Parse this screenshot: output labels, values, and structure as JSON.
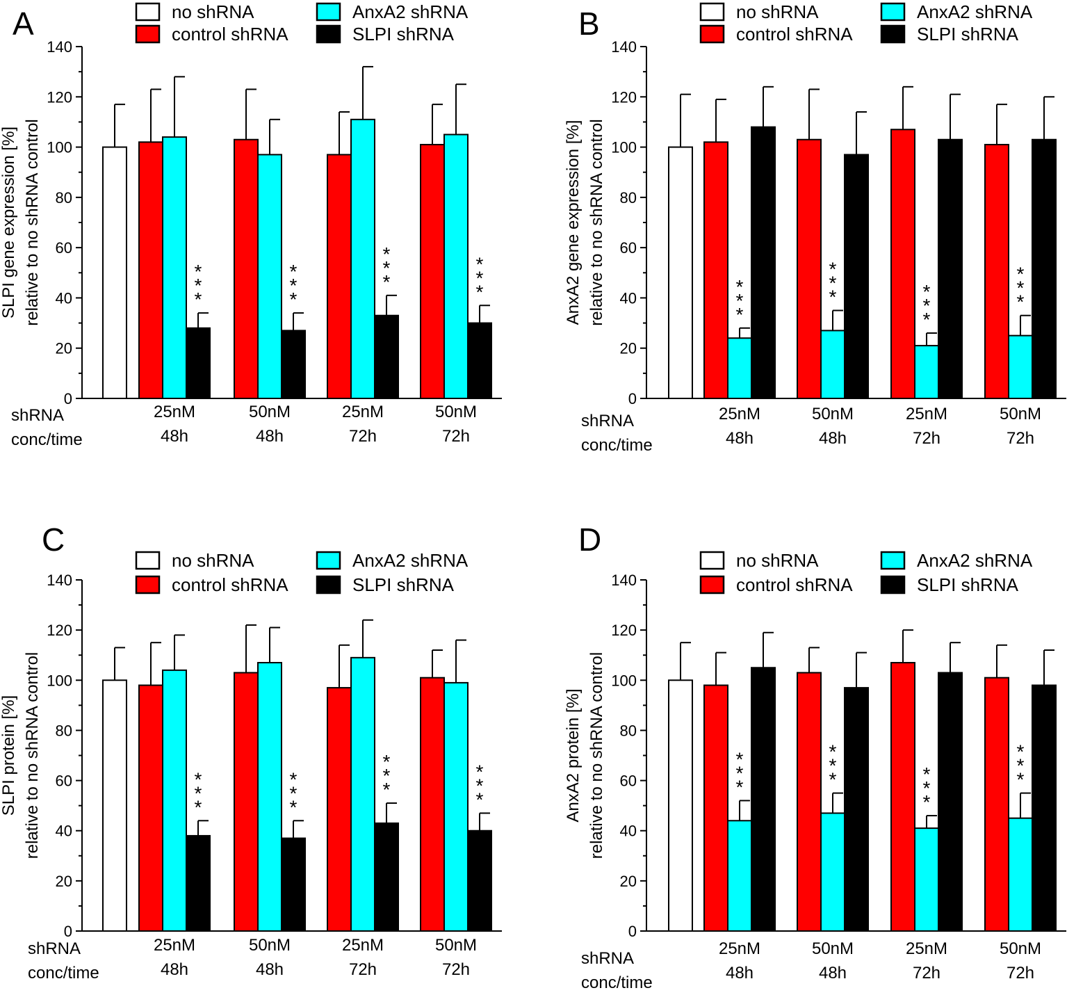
{
  "figure": {
    "colors": {
      "no_shrna": "#ffffff",
      "control_shrna": "#ff0000",
      "anxa2_shrna": "#00ffff",
      "slpi_shrna": "#000000",
      "axis": "#000000"
    },
    "significance_marker": "***"
  },
  "chart_data": [
    {
      "panel": "A",
      "type": "bar",
      "ylabel_line1": "SLPI gene expression [%]",
      "ylabel_line2": "relative to no shRNA control",
      "ylim": [
        0,
        140
      ],
      "yticks": [
        0,
        20,
        40,
        60,
        80,
        100,
        120,
        140
      ],
      "xaxis_title": [
        "shRNA",
        "conc/time"
      ],
      "legend": [
        {
          "key": "none",
          "label": "no shRNA"
        },
        {
          "key": "control",
          "label": "control shRNA"
        },
        {
          "key": "anxa2",
          "label": "AnxA2 shRNA"
        },
        {
          "key": "slpi",
          "label": "SLPI shRNA"
        }
      ],
      "baseline": {
        "label": "no shRNA",
        "value": 100,
        "error": 17
      },
      "groups": [
        {
          "label1": "25nM",
          "label2": "48h",
          "bars": [
            {
              "series": "control",
              "value": 102,
              "error": 21
            },
            {
              "series": "anxa2",
              "value": 104,
              "error": 24
            },
            {
              "series": "slpi",
              "value": 28,
              "error": 6,
              "sig": true
            }
          ]
        },
        {
          "label1": "50nM",
          "label2": "48h",
          "bars": [
            {
              "series": "control",
              "value": 103,
              "error": 20
            },
            {
              "series": "anxa2",
              "value": 97,
              "error": 14
            },
            {
              "series": "slpi",
              "value": 27,
              "error": 7,
              "sig": true
            }
          ]
        },
        {
          "label1": "25nM",
          "label2": "72h",
          "bars": [
            {
              "series": "control",
              "value": 97,
              "error": 17
            },
            {
              "series": "anxa2",
              "value": 111,
              "error": 21
            },
            {
              "series": "slpi",
              "value": 33,
              "error": 8,
              "sig": true
            }
          ]
        },
        {
          "label1": "50nM",
          "label2": "72h",
          "bars": [
            {
              "series": "control",
              "value": 101,
              "error": 16
            },
            {
              "series": "anxa2",
              "value": 105,
              "error": 20
            },
            {
              "series": "slpi",
              "value": 30,
              "error": 7,
              "sig": true
            }
          ]
        }
      ]
    },
    {
      "panel": "B",
      "type": "bar",
      "ylabel_line1": "AnxA2 gene expression [%]",
      "ylabel_line2": "relative to no shRNA control",
      "ylim": [
        0,
        140
      ],
      "yticks": [
        0,
        20,
        40,
        60,
        80,
        100,
        120,
        140
      ],
      "xaxis_title": [
        "shRNA",
        "conc/time"
      ],
      "legend": [
        {
          "key": "none",
          "label": "no shRNA"
        },
        {
          "key": "control",
          "label": "control shRNA"
        },
        {
          "key": "anxa2",
          "label": "AnxA2 shRNA"
        },
        {
          "key": "slpi",
          "label": "SLPI shRNA"
        }
      ],
      "baseline": {
        "label": "no shRNA",
        "value": 100,
        "error": 21
      },
      "groups": [
        {
          "label1": "25nM",
          "label2": "48h",
          "bars": [
            {
              "series": "control",
              "value": 102,
              "error": 17
            },
            {
              "series": "anxa2",
              "value": 24,
              "error": 4,
              "sig": true
            },
            {
              "series": "slpi",
              "value": 108,
              "error": 16
            }
          ]
        },
        {
          "label1": "50nM",
          "label2": "48h",
          "bars": [
            {
              "series": "control",
              "value": 103,
              "error": 20
            },
            {
              "series": "anxa2",
              "value": 27,
              "error": 8,
              "sig": true
            },
            {
              "series": "slpi",
              "value": 97,
              "error": 17
            }
          ]
        },
        {
          "label1": "25nM",
          "label2": "72h",
          "bars": [
            {
              "series": "control",
              "value": 107,
              "error": 17
            },
            {
              "series": "anxa2",
              "value": 21,
              "error": 5,
              "sig": true
            },
            {
              "series": "slpi",
              "value": 103,
              "error": 18
            }
          ]
        },
        {
          "label1": "50nM",
          "label2": "72h",
          "bars": [
            {
              "series": "control",
              "value": 101,
              "error": 16
            },
            {
              "series": "anxa2",
              "value": 25,
              "error": 8,
              "sig": true
            },
            {
              "series": "slpi",
              "value": 103,
              "error": 17
            }
          ]
        }
      ]
    },
    {
      "panel": "C",
      "type": "bar",
      "ylabel_line1": "SLPI protein [%]",
      "ylabel_line2": "relative to no shRNA control",
      "ylim": [
        0,
        140
      ],
      "yticks": [
        0,
        20,
        40,
        60,
        80,
        100,
        120,
        140
      ],
      "xaxis_title": [
        "shRNA",
        "conc/time"
      ],
      "legend": [
        {
          "key": "none",
          "label": "no shRNA"
        },
        {
          "key": "control",
          "label": "control shRNA"
        },
        {
          "key": "anxa2",
          "label": "AnxA2 shRNA"
        },
        {
          "key": "slpi",
          "label": "SLPI shRNA"
        }
      ],
      "baseline": {
        "label": "no shRNA",
        "value": 100,
        "error": 13
      },
      "groups": [
        {
          "label1": "25nM",
          "label2": "48h",
          "bars": [
            {
              "series": "control",
              "value": 98,
              "error": 17
            },
            {
              "series": "anxa2",
              "value": 104,
              "error": 14
            },
            {
              "series": "slpi",
              "value": 38,
              "error": 6,
              "sig": true
            }
          ]
        },
        {
          "label1": "50nM",
          "label2": "48h",
          "bars": [
            {
              "series": "control",
              "value": 103,
              "error": 19
            },
            {
              "series": "anxa2",
              "value": 107,
              "error": 14
            },
            {
              "series": "slpi",
              "value": 37,
              "error": 7,
              "sig": true
            }
          ]
        },
        {
          "label1": "25nM",
          "label2": "72h",
          "bars": [
            {
              "series": "control",
              "value": 97,
              "error": 17
            },
            {
              "series": "anxa2",
              "value": 109,
              "error": 15
            },
            {
              "series": "slpi",
              "value": 43,
              "error": 8,
              "sig": true
            }
          ]
        },
        {
          "label1": "50nM",
          "label2": "72h",
          "bars": [
            {
              "series": "control",
              "value": 101,
              "error": 11
            },
            {
              "series": "anxa2",
              "value": 99,
              "error": 17
            },
            {
              "series": "slpi",
              "value": 40,
              "error": 7,
              "sig": true
            }
          ]
        }
      ]
    },
    {
      "panel": "D",
      "type": "bar",
      "ylabel_line1": "AnxA2 protein [%]",
      "ylabel_line2": "relative to no shRNA control",
      "ylim": [
        0,
        140
      ],
      "yticks": [
        0,
        20,
        40,
        60,
        80,
        100,
        120,
        140
      ],
      "xaxis_title": [
        "shRNA",
        "conc/time"
      ],
      "legend": [
        {
          "key": "none",
          "label": "no shRNA"
        },
        {
          "key": "control",
          "label": "control shRNA"
        },
        {
          "key": "anxa2",
          "label": "AnxA2 shRNA"
        },
        {
          "key": "slpi",
          "label": "SLPI shRNA"
        }
      ],
      "baseline": {
        "label": "no shRNA",
        "value": 100,
        "error": 15
      },
      "groups": [
        {
          "label1": "25nM",
          "label2": "48h",
          "bars": [
            {
              "series": "control",
              "value": 98,
              "error": 13
            },
            {
              "series": "anxa2",
              "value": 44,
              "error": 8,
              "sig": true
            },
            {
              "series": "slpi",
              "value": 105,
              "error": 14
            }
          ]
        },
        {
          "label1": "50nM",
          "label2": "48h",
          "bars": [
            {
              "series": "control",
              "value": 103,
              "error": 10
            },
            {
              "series": "anxa2",
              "value": 47,
              "error": 8,
              "sig": true
            },
            {
              "series": "slpi",
              "value": 97,
              "error": 14
            }
          ]
        },
        {
          "label1": "25nM",
          "label2": "72h",
          "bars": [
            {
              "series": "control",
              "value": 107,
              "error": 13
            },
            {
              "series": "anxa2",
              "value": 41,
              "error": 5,
              "sig": true
            },
            {
              "series": "slpi",
              "value": 103,
              "error": 12
            }
          ]
        },
        {
          "label1": "50nM",
          "label2": "72h",
          "bars": [
            {
              "series": "control",
              "value": 101,
              "error": 13
            },
            {
              "series": "anxa2",
              "value": 45,
              "error": 10,
              "sig": true
            },
            {
              "series": "slpi",
              "value": 98,
              "error": 14
            }
          ]
        }
      ]
    }
  ]
}
